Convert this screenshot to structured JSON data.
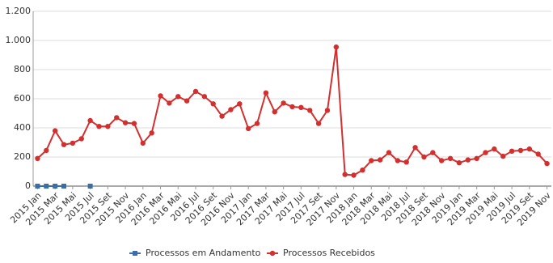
{
  "chart_data": {
    "type": "line",
    "categories": [
      "2015 Jan",
      null,
      "2015 Mar",
      null,
      "2015 Mai",
      null,
      "2015 Jul",
      null,
      "2015 Set",
      null,
      "2015 Nov",
      null,
      "2016 Jan",
      null,
      "2016 Mar",
      null,
      "2016 Mai",
      null,
      "2016 Jul",
      null,
      "2016 Set",
      null,
      "2016 Nov",
      null,
      "2017 Jan",
      null,
      "2017 Mar",
      null,
      "2017 Mai",
      null,
      "2017 Jul",
      null,
      "2017 Set",
      null,
      "2017 Nov",
      null,
      "2018 Jan",
      null,
      "2018 Mar",
      null,
      "2018 Mai",
      null,
      "2018 Jul",
      null,
      "2018 Set",
      null,
      "2018 Nov",
      null,
      "2019 Jan",
      null,
      "2019 Mar",
      null,
      "2019 Mai",
      null,
      "2019 Jul",
      null,
      "2019 Set",
      null,
      "2019 Nov"
    ],
    "series": [
      {
        "name": "Processos em Andamento",
        "color": "#3a6ea5",
        "marker": "square",
        "values": [
          0,
          0,
          0,
          0,
          null,
          null,
          0,
          null,
          null,
          null,
          null,
          null,
          null,
          null,
          null,
          null,
          null,
          null,
          null,
          null,
          null,
          null,
          null,
          null,
          null,
          null,
          null,
          null,
          null,
          null,
          null,
          null,
          null,
          null,
          null,
          null,
          null,
          null,
          null,
          null,
          null,
          null,
          null,
          null,
          null,
          null,
          null,
          null,
          null,
          null,
          null,
          null,
          null,
          null,
          null,
          null,
          null,
          null,
          null
        ]
      },
      {
        "name": "Processos Recebidos",
        "color": "#d32f2f",
        "marker": "circle",
        "values": [
          190,
          245,
          380,
          285,
          295,
          325,
          450,
          410,
          410,
          470,
          435,
          430,
          295,
          365,
          620,
          570,
          615,
          585,
          650,
          615,
          565,
          480,
          525,
          565,
          395,
          430,
          640,
          510,
          570,
          545,
          540,
          520,
          430,
          520,
          955,
          80,
          75,
          110,
          175,
          180,
          230,
          175,
          165,
          265,
          200,
          230,
          175,
          190,
          160,
          180,
          190,
          230,
          255,
          205,
          240,
          245,
          255,
          220,
          155
        ]
      }
    ],
    "ylim": [
      0,
      1200
    ],
    "yticks": [
      0,
      200,
      400,
      600,
      800,
      {
        "value": 1000,
        "label": "1.000"
      },
      {
        "value": 1200,
        "label": "1.200"
      }
    ],
    "grid": true,
    "legend": "bottom"
  }
}
